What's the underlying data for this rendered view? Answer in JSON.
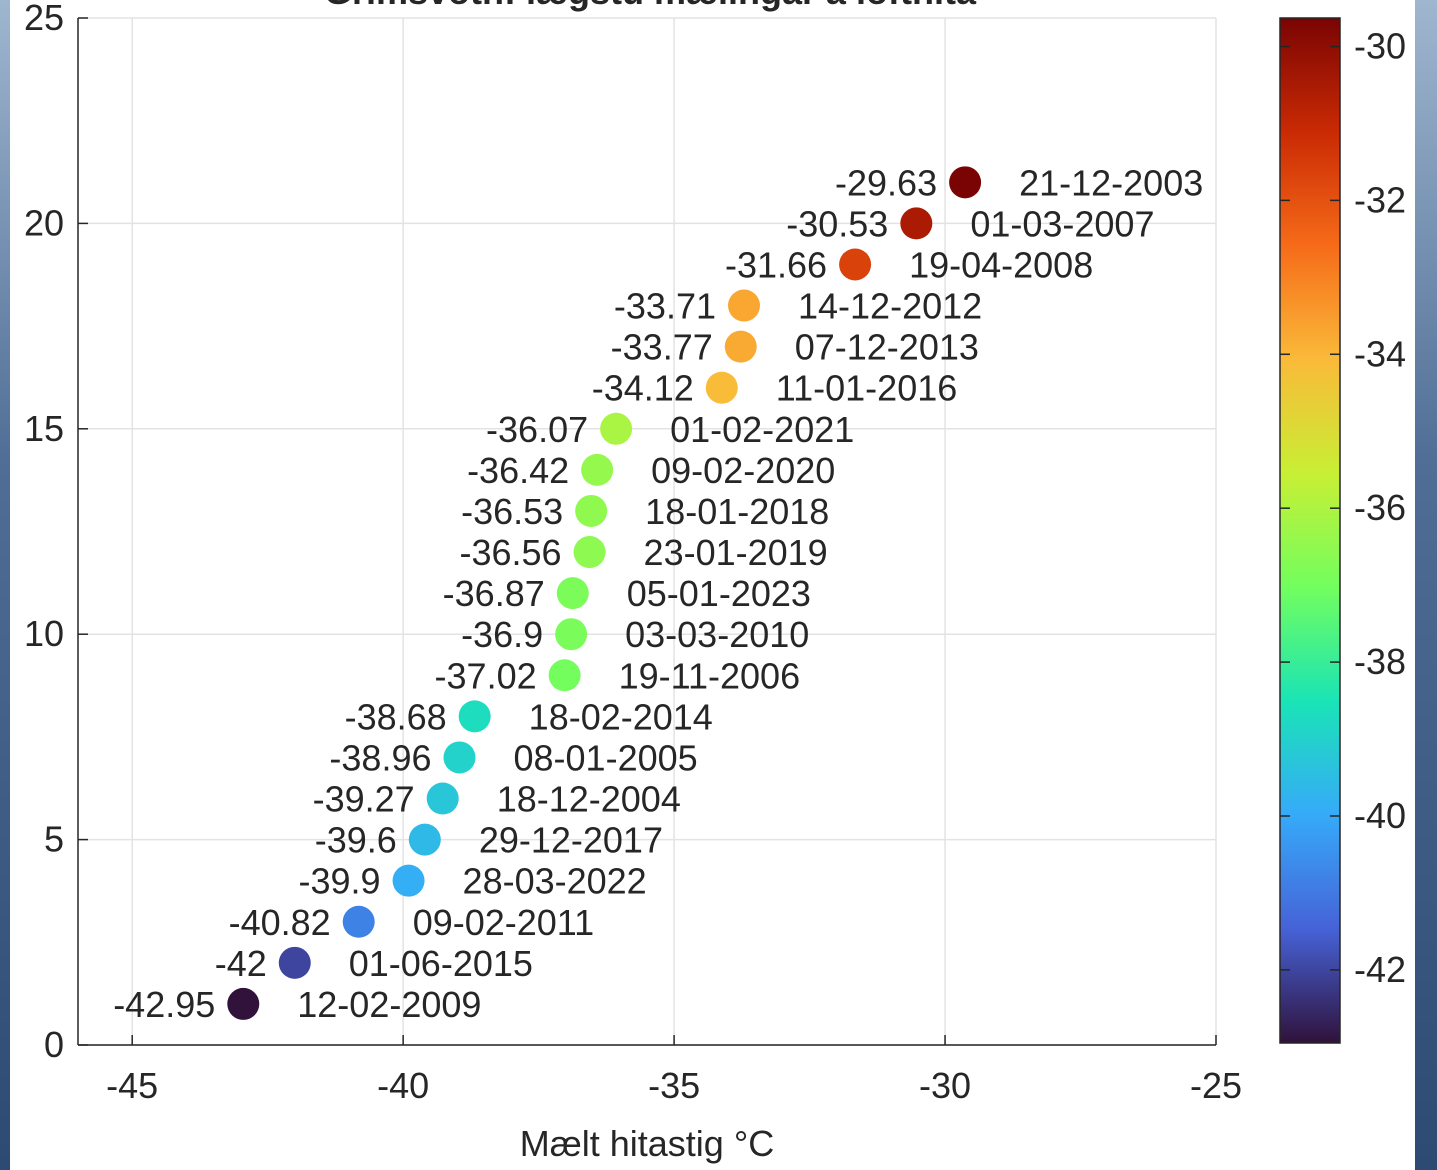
{
  "chart_data": {
    "type": "scatter",
    "title": "Grímsvötn: lægstu mælingar á lofthita",
    "xlabel": "Mælt hitastig °C",
    "x": [
      -42.95,
      -42,
      -40.82,
      -39.9,
      -39.6,
      -39.27,
      -38.96,
      -38.68,
      -37.02,
      -36.9,
      -36.87,
      -36.56,
      -36.53,
      -36.42,
      -36.07,
      -34.12,
      -33.77,
      -33.71,
      -31.66,
      -30.53,
      -29.63
    ],
    "y": [
      1,
      2,
      3,
      4,
      5,
      6,
      7,
      8,
      9,
      10,
      11,
      12,
      13,
      14,
      15,
      16,
      17,
      18,
      19,
      20,
      21
    ],
    "point_labels": [
      "12-02-2009",
      "01-06-2015",
      "09-02-2011",
      "28-03-2022",
      "29-12-2017",
      "18-12-2004",
      "08-01-2005",
      "18-02-2014",
      "19-11-2006",
      "03-03-2010",
      "05-01-2023",
      "23-01-2019",
      "18-01-2018",
      "09-02-2020",
      "01-02-2021",
      "11-01-2016",
      "07-12-2013",
      "14-12-2012",
      "19-04-2008",
      "01-03-2007",
      "21-12-2003"
    ],
    "xlim": [
      -46,
      -25
    ],
    "xticks": [
      -45,
      -40,
      -35,
      -30,
      -25
    ],
    "ylim": [
      0,
      25
    ],
    "yticks": [
      0,
      5,
      10,
      15,
      20,
      25
    ],
    "grid": true,
    "colormap": [
      "#30123b",
      "#4662d7",
      "#36aaf9",
      "#1ae4b6",
      "#72fe5e",
      "#c8ef34",
      "#faba39",
      "#f66b19",
      "#ca2a04",
      "#7a0403"
    ],
    "clim": [
      -42.95,
      -29.63
    ],
    "cticks": [
      -30,
      -32,
      -34,
      -36,
      -38,
      -40,
      -42
    ]
  }
}
